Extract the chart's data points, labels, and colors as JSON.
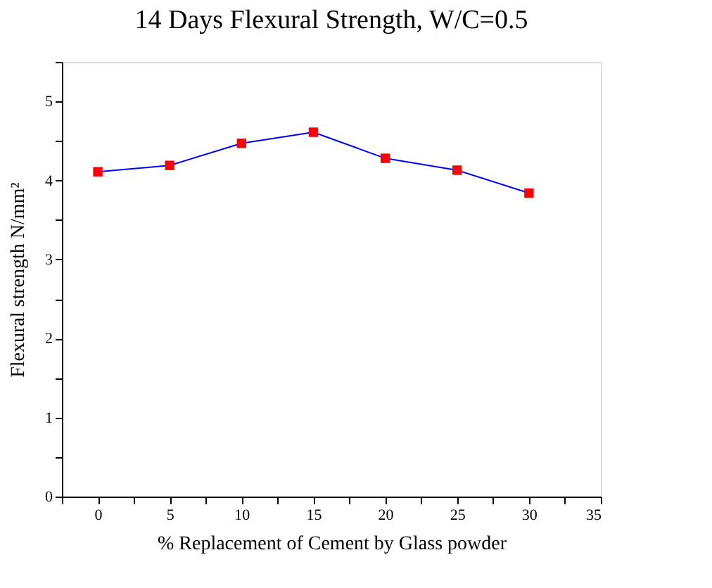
{
  "chart_data": {
    "type": "line",
    "title": "14  Days Flexural Strength, W/C=0.5",
    "xlabel": "% Replacement of Cement by Glass powder",
    "ylabel": "Flexural strength N/mm²",
    "x": [
      0,
      5,
      10,
      15,
      20,
      25,
      30
    ],
    "series": [
      {
        "color": "#0000ff",
        "colors": [
          "#ff0000",
          "#ff0000",
          "#ff0000",
          "#ff0000",
          "#ff0000",
          "#ff0000",
          "#ff0000"
        ],
        "values": [
          4.11,
          4.19,
          4.47,
          4.61,
          4.28,
          4.13,
          3.84
        ]
      }
    ],
    "xlim": [
      -2.5,
      35
    ],
    "xticks": [
      {
        "value": -2.5,
        "label": null
      },
      0,
      {
        "value": 2.5,
        "label": null
      },
      5,
      {
        "value": 7.5,
        "label": null
      },
      10,
      {
        "value": 12.5,
        "label": null
      },
      15,
      {
        "value": 17.5,
        "label": null
      },
      20,
      {
        "value": 22.5,
        "label": null
      },
      25,
      {
        "value": 27.5,
        "label": null
      },
      30,
      {
        "value": 32.5,
        "label": null
      },
      35
    ],
    "ylim": [
      0,
      5.5
    ],
    "yticks": [
      0,
      {
        "value": 0.5,
        "label": null
      },
      1,
      {
        "value": 1.5,
        "label": null
      },
      2,
      {
        "value": 2.5,
        "label": null
      },
      3,
      {
        "value": 3.5,
        "label": null
      },
      4,
      {
        "value": 4.5,
        "label": null
      },
      5,
      {
        "value": 5.5,
        "label": null
      }
    ],
    "marker": "square",
    "line_style": "solid",
    "grid": false,
    "legend": false
  }
}
